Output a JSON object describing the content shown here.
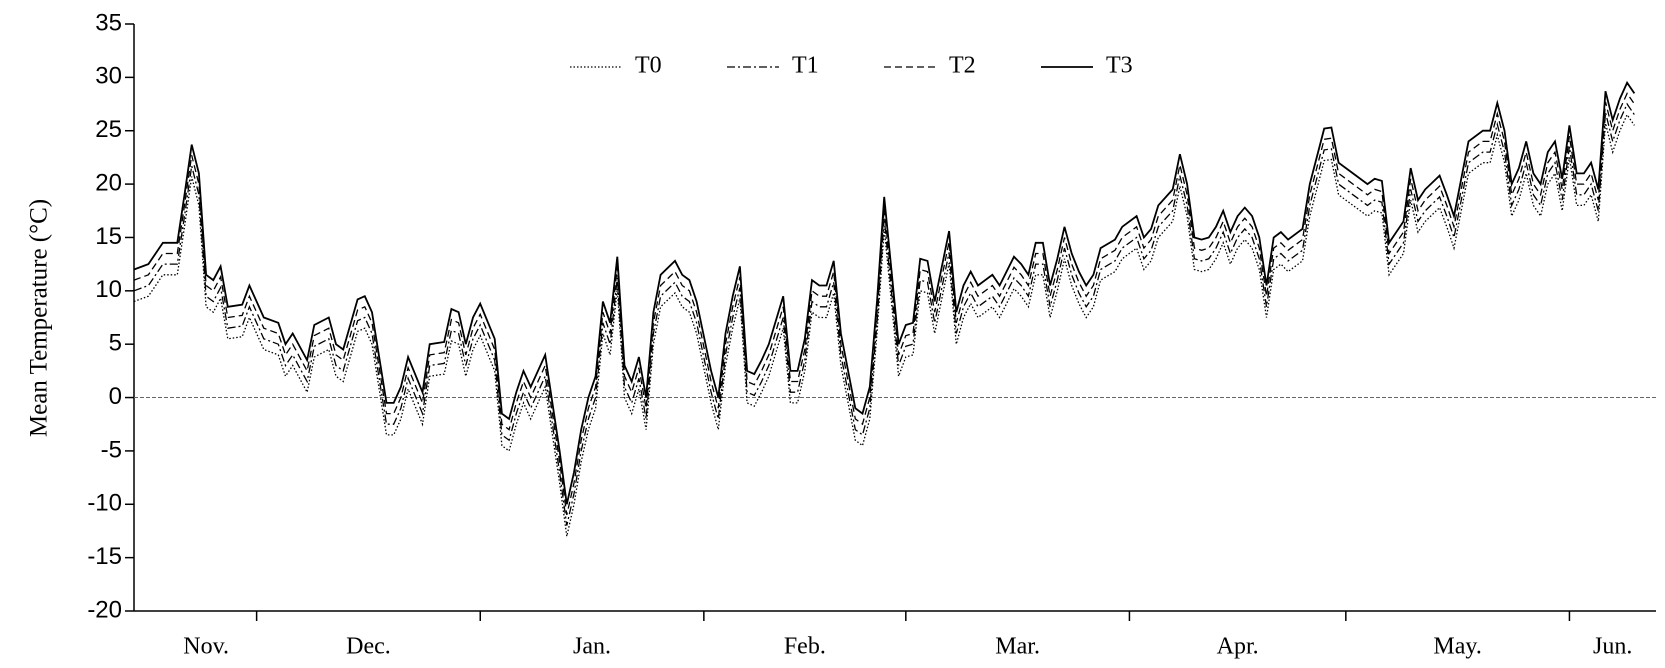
{
  "chart_data": {
    "type": "line",
    "y_label": "Mean Temperature (°C)",
    "x": [
      13,
      15,
      17,
      19,
      20,
      21,
      22,
      23,
      24,
      25,
      26,
      28,
      29,
      31,
      33,
      34,
      35,
      37,
      38,
      40,
      41,
      42,
      44,
      45,
      46,
      48,
      49,
      50,
      51,
      53,
      54,
      56,
      57,
      58,
      59,
      60,
      61,
      63,
      64,
      65,
      66,
      67,
      68,
      70,
      72,
      73,
      74,
      75,
      76,
      77,
      78,
      79,
      80,
      81,
      82,
      83,
      84,
      85,
      86,
      88,
      89,
      90,
      91,
      93,
      94,
      95,
      96,
      97,
      98,
      99,
      100,
      101,
      103,
      104,
      105,
      106,
      107,
      108,
      109,
      110,
      111,
      113,
      114,
      115,
      116,
      117,
      118,
      119,
      120,
      121,
      122,
      123,
      124,
      126,
      127,
      128,
      129,
      130,
      132,
      133,
      135,
      136,
      137,
      138,
      139,
      140,
      141,
      142,
      143,
      144,
      145,
      146,
      147,
      149,
      150,
      152,
      153,
      154,
      155,
      157,
      158,
      159,
      160,
      161,
      162,
      163,
      164,
      165,
      166,
      167,
      168,
      169,
      170,
      171,
      172,
      173,
      175,
      176,
      178,
      179,
      180,
      182,
      184,
      185,
      186,
      187,
      189,
      190,
      191,
      192,
      194,
      195,
      196,
      198,
      200,
      201,
      202,
      203,
      204,
      205,
      206,
      207,
      208,
      209,
      210,
      211,
      212,
      213,
      214,
      215,
      216,
      217,
      218,
      219,
      220,
      221
    ],
    "series": [
      {
        "name": "T0",
        "color": "#000000",
        "dash": "dotted",
        "values": [
          9,
          9.5,
          11.5,
          11.5,
          16,
          20.7,
          18,
          8.5,
          8,
          9.3,
          5.5,
          5.7,
          7.5,
          4.5,
          4,
          2,
          3,
          0.5,
          3.8,
          4.5,
          2,
          1.5,
          6.2,
          6.5,
          5,
          -3.5,
          -3.5,
          -2,
          0.8,
          -2.5,
          2,
          2.2,
          5.3,
          5,
          2,
          4.5,
          5.8,
          2.5,
          -4.5,
          -5,
          -2.5,
          -0.5,
          -2,
          1,
          -8,
          -13,
          -10,
          -6,
          -3,
          -1,
          6,
          4,
          10.2,
          0,
          -1.5,
          0.8,
          -3,
          5,
          8.5,
          9.8,
          8.5,
          8,
          6,
          -0.5,
          -3,
          3,
          6.5,
          9.3,
          -0.5,
          -0.8,
          0.5,
          2,
          6.5,
          -0.5,
          -0.5,
          2.5,
          8,
          7.5,
          7.5,
          9.8,
          3,
          -4,
          -4.5,
          -2,
          6,
          15.8,
          9,
          2,
          3.8,
          4,
          10,
          9.8,
          6,
          12.6,
          5,
          7.5,
          8.8,
          7.5,
          8.5,
          7.5,
          10.2,
          9.5,
          8.5,
          11.5,
          11.5,
          7.5,
          10,
          13,
          10.5,
          8.8,
          7.5,
          8.5,
          11,
          11.8,
          13,
          14,
          12,
          12.8,
          15,
          16.5,
          19.8,
          17,
          12,
          11.8,
          12,
          13,
          14.5,
          12.5,
          14,
          14.8,
          14,
          12,
          7.5,
          12,
          12.5,
          11.8,
          12.8,
          17,
          22.2,
          22.3,
          19,
          18,
          17,
          17.5,
          17.3,
          11.5,
          13.5,
          18.5,
          15.5,
          16.5,
          17.8,
          16,
          14,
          21,
          22,
          22,
          24.6,
          22,
          17,
          18.5,
          21,
          18,
          17,
          20,
          21,
          17.5,
          22.5,
          18,
          18,
          19,
          16.5,
          25.7,
          23,
          25,
          26.5,
          25.5
        ]
      },
      {
        "name": "T1",
        "color": "#000000",
        "dash": "dashdot",
        "values": [
          10,
          10.5,
          12.5,
          12.5,
          17,
          21.7,
          19,
          9.5,
          9,
          10.3,
          6.5,
          6.7,
          8.5,
          5.5,
          5,
          3,
          4,
          1.5,
          4.8,
          5.5,
          3,
          2.5,
          7.2,
          7.5,
          6,
          -2.5,
          -2.5,
          -1,
          1.8,
          -1.5,
          3,
          3.2,
          6.3,
          6,
          3,
          5.5,
          6.8,
          3.5,
          -3.5,
          -4,
          -1.5,
          0.5,
          -1,
          2,
          -7,
          -12,
          -9,
          -5,
          -2,
          0,
          7,
          5,
          11.2,
          1,
          -0.5,
          1.8,
          -2,
          6,
          9.5,
          10.8,
          9.5,
          9,
          7,
          0.5,
          -2,
          4,
          7.5,
          10.3,
          0.5,
          0.2,
          1.5,
          3,
          7.5,
          0.5,
          0.5,
          3.5,
          9,
          8.5,
          8.5,
          10.8,
          4,
          -3,
          -3.5,
          -1,
          7,
          16.8,
          10,
          3,
          4.8,
          5,
          11,
          10.8,
          7,
          13.6,
          6,
          8.5,
          9.8,
          8.5,
          9.5,
          8.5,
          11.2,
          10.5,
          9.5,
          12.5,
          12.5,
          8.5,
          11,
          14,
          11.5,
          9.8,
          8.5,
          9.5,
          12,
          12.8,
          14,
          15,
          13,
          13.8,
          16,
          17.5,
          20.8,
          18,
          13,
          12.8,
          13,
          14,
          15.5,
          13.5,
          15,
          15.8,
          15,
          13,
          8.5,
          13,
          13.5,
          12.8,
          13.8,
          18,
          23.2,
          23.3,
          20,
          19,
          18,
          18.5,
          18.3,
          12.5,
          14.5,
          19.5,
          16.5,
          17.5,
          18.8,
          17,
          15,
          22,
          23,
          23,
          25.6,
          23,
          18,
          19.5,
          22,
          19,
          18,
          21,
          22,
          18.5,
          23.5,
          19,
          19,
          20,
          17.5,
          26.7,
          24,
          26,
          27.5,
          26.5
        ]
      },
      {
        "name": "T2",
        "color": "#000000",
        "dash": "dashed",
        "values": [
          11,
          11.5,
          13.5,
          13.5,
          18,
          22.7,
          20,
          10.5,
          10,
          11.3,
          7.5,
          7.7,
          9.5,
          6.5,
          6,
          4,
          5,
          2.5,
          5.8,
          6.5,
          4,
          3.5,
          8.2,
          8.5,
          7,
          -1.5,
          -1.5,
          0,
          2.8,
          -0.5,
          4,
          4.2,
          7.3,
          7,
          4,
          6.5,
          7.8,
          4.5,
          -2.5,
          -3,
          -0.5,
          1.5,
          0,
          3,
          -6,
          -11,
          -8,
          -4,
          -1,
          1,
          8,
          6,
          12.2,
          2,
          0.5,
          2.8,
          -1,
          7,
          10.5,
          11.8,
          10.5,
          10,
          8,
          1.5,
          -1,
          5,
          8.5,
          11.3,
          1.5,
          1.2,
          2.5,
          4,
          8.5,
          1.5,
          1.5,
          4.5,
          10,
          9.5,
          9.5,
          11.8,
          5,
          -2,
          -2.5,
          0,
          8,
          17.8,
          11,
          4,
          5.8,
          6,
          12,
          11.8,
          8,
          14.6,
          7,
          9.5,
          10.8,
          9.5,
          10.5,
          9.5,
          12.2,
          11.5,
          10.5,
          13.5,
          13.5,
          9.5,
          12,
          15,
          12.5,
          10.8,
          9.5,
          10.5,
          13,
          13.8,
          15,
          16,
          14,
          14.8,
          17,
          18.5,
          21.8,
          19,
          14,
          13.8,
          14,
          15,
          16.5,
          14.5,
          16,
          16.8,
          16,
          14,
          9.5,
          14,
          14.5,
          13.8,
          14.8,
          19,
          24.2,
          24.3,
          21,
          20,
          19,
          19.5,
          19.3,
          13.5,
          15.5,
          20.5,
          17.5,
          18.5,
          19.8,
          18,
          16,
          23,
          24,
          24,
          26.6,
          24,
          19,
          20.5,
          23,
          20,
          19,
          22,
          23,
          19.5,
          24.5,
          20,
          20,
          21,
          18.5,
          27.7,
          25,
          27,
          28.5,
          27.5
        ]
      },
      {
        "name": "T3",
        "color": "#000000",
        "dash": "solid",
        "values": [
          12,
          12.5,
          14.5,
          14.5,
          19,
          23.7,
          21,
          11.5,
          11,
          12.3,
          8.5,
          8.7,
          10.5,
          7.5,
          7,
          5,
          6,
          3.5,
          6.8,
          7.5,
          5,
          4.5,
          9.2,
          9.5,
          8,
          -0.5,
          -0.5,
          1,
          3.8,
          0.5,
          5,
          5.2,
          8.3,
          8,
          5,
          7.5,
          8.8,
          5.5,
          -1.5,
          -2,
          0.5,
          2.5,
          1,
          4,
          -5,
          -10,
          -7,
          -3,
          0,
          2,
          9,
          7,
          13.2,
          3,
          1.5,
          3.8,
          0,
          8,
          11.5,
          12.8,
          11.5,
          11,
          9,
          2.5,
          0,
          6,
          9.5,
          12.3,
          2.5,
          2.2,
          3.5,
          5,
          9.5,
          2.5,
          2.5,
          5.5,
          11,
          10.5,
          10.5,
          12.8,
          6,
          -1,
          -1.5,
          1,
          9,
          18.8,
          12,
          5,
          6.8,
          7,
          13,
          12.8,
          9,
          15.6,
          8,
          10.5,
          11.8,
          10.5,
          11.5,
          10.5,
          13.2,
          12.5,
          11.5,
          14.5,
          14.5,
          10.5,
          13,
          16,
          13.5,
          11.8,
          10.5,
          11.5,
          14,
          14.8,
          16,
          17,
          15,
          15.8,
          18,
          19.5,
          22.8,
          20,
          15,
          14.8,
          15,
          16,
          17.5,
          15.5,
          17,
          17.8,
          17,
          15,
          10.5,
          15,
          15.5,
          14.8,
          15.8,
          20,
          25.2,
          25.3,
          22,
          21,
          20,
          20.5,
          20.3,
          14.5,
          16.5,
          21.5,
          18.5,
          19.5,
          20.8,
          19,
          17,
          24,
          25,
          25,
          27.6,
          25,
          20,
          21.5,
          24,
          21,
          20,
          23,
          24,
          20.5,
          25.5,
          21,
          21,
          22,
          19.5,
          28.7,
          26,
          28,
          29.5,
          28.5
        ]
      }
    ],
    "xlim": [
      13,
      224
    ],
    "month_boundaries": [
      30,
      61,
      92,
      120,
      151,
      181,
      212
    ],
    "month_labels": [
      {
        "value": 23,
        "label": "Nov."
      },
      {
        "value": 45.5,
        "label": "Dec."
      },
      {
        "value": 76.5,
        "label": "Jan."
      },
      {
        "value": 106,
        "label": "Feb."
      },
      {
        "value": 135.5,
        "label": "Mar."
      },
      {
        "value": 166,
        "label": "Apr."
      },
      {
        "value": 196.5,
        "label": "May."
      },
      {
        "value": 218,
        "label": "Jun."
      }
    ],
    "ylim": [
      -20,
      35
    ],
    "yticks": [
      -20,
      -15,
      -10,
      -5,
      0,
      5,
      10,
      15,
      20,
      25,
      30,
      35
    ],
    "zero_line": true,
    "legend": "top"
  }
}
